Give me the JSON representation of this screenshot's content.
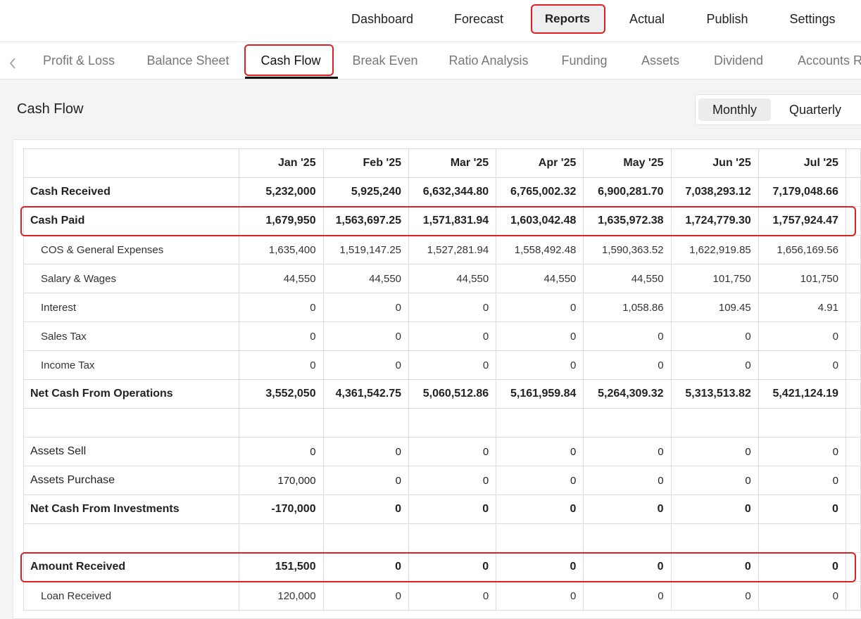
{
  "nav": {
    "items": [
      "Dashboard",
      "Forecast",
      "Reports",
      "Actual",
      "Publish",
      "Settings"
    ]
  },
  "tabs": {
    "items": [
      "Profit & Loss",
      "Balance Sheet",
      "Cash Flow",
      "Break Even",
      "Ratio Analysis",
      "Funding",
      "Assets",
      "Dividend",
      "Accounts R"
    ]
  },
  "page": {
    "title": "Cash Flow",
    "toggle": [
      "Monthly",
      "Quarterly"
    ]
  },
  "table": {
    "columns": [
      "Jan '25",
      "Feb '25",
      "Mar '25",
      "Apr '25",
      "May '25",
      "Jun '25",
      "Jul '25"
    ],
    "sections": [
      {
        "rows": [
          {
            "label": "Cash Received",
            "style": "bold",
            "values": [
              "5,232,000",
              "5,925,240",
              "6,632,344.80",
              "6,765,002.32",
              "6,900,281.70",
              "7,038,293.12",
              "7,179,048.66"
            ]
          },
          {
            "label": "Cash Paid",
            "style": "bold",
            "highlight": true,
            "values": [
              "1,679,950",
              "1,563,697.25",
              "1,571,831.94",
              "1,603,042.48",
              "1,635,972.38",
              "1,724,779.30",
              "1,757,924.47"
            ]
          },
          {
            "label": "COS & General Expenses",
            "style": "indent",
            "values": [
              "1,635,400",
              "1,519,147.25",
              "1,527,281.94",
              "1,558,492.48",
              "1,590,363.52",
              "1,622,919.85",
              "1,656,169.56"
            ]
          },
          {
            "label": "Salary & Wages",
            "style": "indent",
            "values": [
              "44,550",
              "44,550",
              "44,550",
              "44,550",
              "44,550",
              "101,750",
              "101,750"
            ]
          },
          {
            "label": "Interest",
            "style": "indent",
            "values": [
              "0",
              "0",
              "0",
              "0",
              "1,058.86",
              "109.45",
              "4.91"
            ]
          },
          {
            "label": "Sales Tax",
            "style": "indent",
            "values": [
              "0",
              "0",
              "0",
              "0",
              "0",
              "0",
              "0"
            ]
          },
          {
            "label": "Income Tax",
            "style": "indent",
            "values": [
              "0",
              "0",
              "0",
              "0",
              "0",
              "0",
              "0"
            ]
          },
          {
            "label": "Net Cash From Operations",
            "style": "bold",
            "values": [
              "3,552,050",
              "4,361,542.75",
              "5,060,512.86",
              "5,161,959.84",
              "5,264,309.32",
              "5,313,513.82",
              "5,421,124.19"
            ]
          }
        ]
      },
      {
        "rows": [
          {
            "label": "Assets Sell",
            "style": "plain",
            "values": [
              "0",
              "0",
              "0",
              "0",
              "0",
              "0",
              "0"
            ]
          },
          {
            "label": "Assets Purchase",
            "style": "plain",
            "values": [
              "170,000",
              "0",
              "0",
              "0",
              "0",
              "0",
              "0"
            ]
          },
          {
            "label": "Net Cash From Investments",
            "style": "bold",
            "values": [
              "-170,000",
              "0",
              "0",
              "0",
              "0",
              "0",
              "0"
            ]
          }
        ]
      },
      {
        "rows": [
          {
            "label": "Amount Received",
            "style": "bold",
            "highlight": true,
            "values": [
              "151,500",
              "0",
              "0",
              "0",
              "0",
              "0",
              "0"
            ]
          },
          {
            "label": "Loan Received",
            "style": "indent",
            "values": [
              "120,000",
              "0",
              "0",
              "0",
              "0",
              "0",
              "0"
            ]
          }
        ]
      }
    ]
  }
}
